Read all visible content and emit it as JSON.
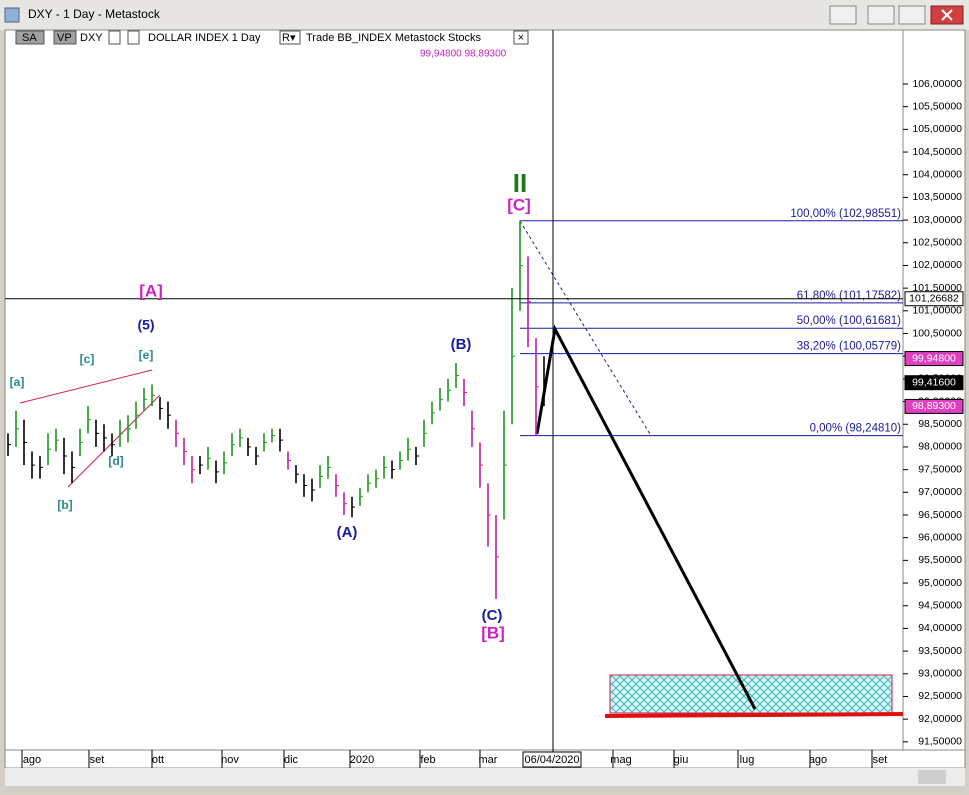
{
  "window": {
    "title": "DXY - 1 Day - Metastock"
  },
  "toolbar": {
    "sa": "SA",
    "vp": "VP",
    "symbol": "DXY",
    "name": "DOLLAR INDEX  1 Day",
    "r": "R▾",
    "source": "Trade  BB_INDEX  Metastock  Stocks",
    "close": "×",
    "values": "99,94800  98,89300"
  },
  "chart_data": {
    "type": "ohlc",
    "high": [
      98.3,
      98.8,
      98.6,
      97.9,
      97.8,
      98.3,
      98.4,
      98.2,
      97.9,
      98.4,
      98.9,
      98.6,
      98.5,
      98.3,
      98.6,
      98.7,
      99.0,
      99.3,
      99.38,
      99.1,
      99.0,
      98.6,
      98.2,
      97.8,
      97.8,
      98.0,
      97.7,
      97.9,
      98.3,
      98.4,
      98.2,
      98.0,
      98.3,
      98.4,
      98.4,
      97.9,
      97.6,
      97.4,
      97.3,
      97.6,
      97.8,
      97.4,
      97.0,
      96.9,
      97.1,
      97.4,
      97.5,
      97.8,
      97.7,
      97.9,
      98.2,
      98.0,
      98.6,
      99.0,
      99.3,
      99.5,
      99.85,
      99.5,
      98.8,
      98.1,
      97.2,
      96.5,
      98.8,
      101.5,
      102.99,
      102.2,
      100.4,
      100.0
    ],
    "low": [
      97.8,
      98.0,
      97.6,
      97.3,
      97.3,
      97.6,
      97.9,
      97.4,
      97.2,
      97.8,
      98.3,
      98.0,
      97.9,
      97.8,
      98.0,
      98.1,
      98.4,
      98.8,
      98.9,
      98.6,
      98.4,
      98.0,
      97.6,
      97.2,
      97.4,
      97.5,
      97.2,
      97.4,
      97.8,
      98.0,
      97.8,
      97.6,
      97.9,
      98.1,
      97.9,
      97.5,
      97.2,
      96.9,
      96.8,
      97.1,
      97.3,
      96.9,
      96.5,
      96.45,
      96.7,
      97.0,
      97.1,
      97.3,
      97.3,
      97.5,
      97.7,
      97.6,
      98.0,
      98.5,
      98.8,
      99.0,
      99.3,
      98.9,
      98.0,
      97.1,
      95.8,
      94.65,
      96.4,
      98.5,
      101.0,
      100.2,
      98.25,
      98.9
    ],
    "up_color": "#1a9a1a",
    "down_color": "#d018a8",
    "bar_color": "#000000",
    "ylim": [
      91.32,
      107.19
    ],
    "yticks": [
      {
        "value": 91.5,
        "label": "91,50000"
      },
      {
        "value": 92,
        "label": "92,00000"
      },
      {
        "value": 92.5,
        "label": "92,50000"
      },
      {
        "value": 93,
        "label": "93,00000"
      },
      {
        "value": 93.5,
        "label": "93,50000"
      },
      {
        "value": 94,
        "label": "94,00000"
      },
      {
        "value": 94.5,
        "label": "94,50000"
      },
      {
        "value": 95,
        "label": "95,00000"
      },
      {
        "value": 95.5,
        "label": "95,50000"
      },
      {
        "value": 96,
        "label": "96,00000"
      },
      {
        "value": 96.5,
        "label": "96,50000"
      },
      {
        "value": 97,
        "label": "97,00000"
      },
      {
        "value": 97.5,
        "label": "97,50000"
      },
      {
        "value": 98,
        "label": "98,00000"
      },
      {
        "value": 98.5,
        "label": "98,50000"
      },
      {
        "value": 99,
        "label": "99,00000"
      },
      {
        "value": 99.5,
        "label": "99,50000"
      },
      {
        "value": 100,
        "label": "100,00000"
      },
      {
        "value": 100.5,
        "label": "100,50000"
      },
      {
        "value": 101,
        "label": "101,00000"
      },
      {
        "value": 101.5,
        "label": "101,50000"
      },
      {
        "value": 102,
        "label": "102,00000"
      },
      {
        "value": 102.5,
        "label": "102,50000"
      },
      {
        "value": 103,
        "label": "103,00000"
      },
      {
        "value": 103.5,
        "label": "103,50000"
      },
      {
        "value": 104,
        "label": "104,00000"
      },
      {
        "value": 104.5,
        "label": "104,50000"
      },
      {
        "value": 105,
        "label": "105,00000"
      },
      {
        "value": 105.5,
        "label": "105,50000"
      },
      {
        "value": 106,
        "label": "106,00000"
      }
    ],
    "x_labels": [
      "ago",
      "set",
      "ott",
      "nov",
      "dic",
      "2020",
      "feb",
      "mar",
      "mag",
      "giu",
      "lug",
      "ago",
      "set"
    ],
    "cursor_date": "06/04/2020",
    "fib_levels": [
      {
        "value": 102.98551,
        "label": "100,00% (102,98551)"
      },
      {
        "value": 101.17582,
        "label": "61,80% (101,17582)"
      },
      {
        "value": 100.61681,
        "label": "50,00% (100,61681)"
      },
      {
        "value": 100.05779,
        "label": "38,20% (100,05779)"
      },
      {
        "value": 98.2481,
        "label": "0,00% (98,24810)"
      }
    ],
    "fib_color": "#1a1aa0",
    "price_markers": [
      {
        "value": 101.26682,
        "label": "101,26682",
        "color": "#ffffff"
      },
      {
        "value": 99.948,
        "label": "99,94800",
        "color": "#e040c0"
      },
      {
        "value": 99.416,
        "label": "99,41600",
        "color": "#000000"
      },
      {
        "value": 98.893,
        "label": "98,89300",
        "color": "#e040c0"
      }
    ],
    "wave_labels": [
      {
        "text": "II",
        "color": "#1a7a1a"
      },
      {
        "text": "[C]",
        "color": "#d020c0"
      },
      {
        "text": "[A]",
        "color": "#d020c0"
      },
      {
        "text": "(5)",
        "color": "#1a1aa0"
      },
      {
        "text": "[c]",
        "color": "#2a8a8a"
      },
      {
        "text": "[e]",
        "color": "#2a8a8a"
      },
      {
        "text": "[a]",
        "color": "#2a8a8a"
      },
      {
        "text": "[d]",
        "color": "#2a8a8a"
      },
      {
        "text": "[b]",
        "color": "#2a8a8a"
      },
      {
        "text": "(B)",
        "color": "#1a1aa0"
      },
      {
        "text": "(A)",
        "color": "#1a1aa0"
      },
      {
        "text": "(C)",
        "color": "#1a1aa0"
      },
      {
        "text": "[B]",
        "color": "#d020c0"
      }
    ]
  }
}
